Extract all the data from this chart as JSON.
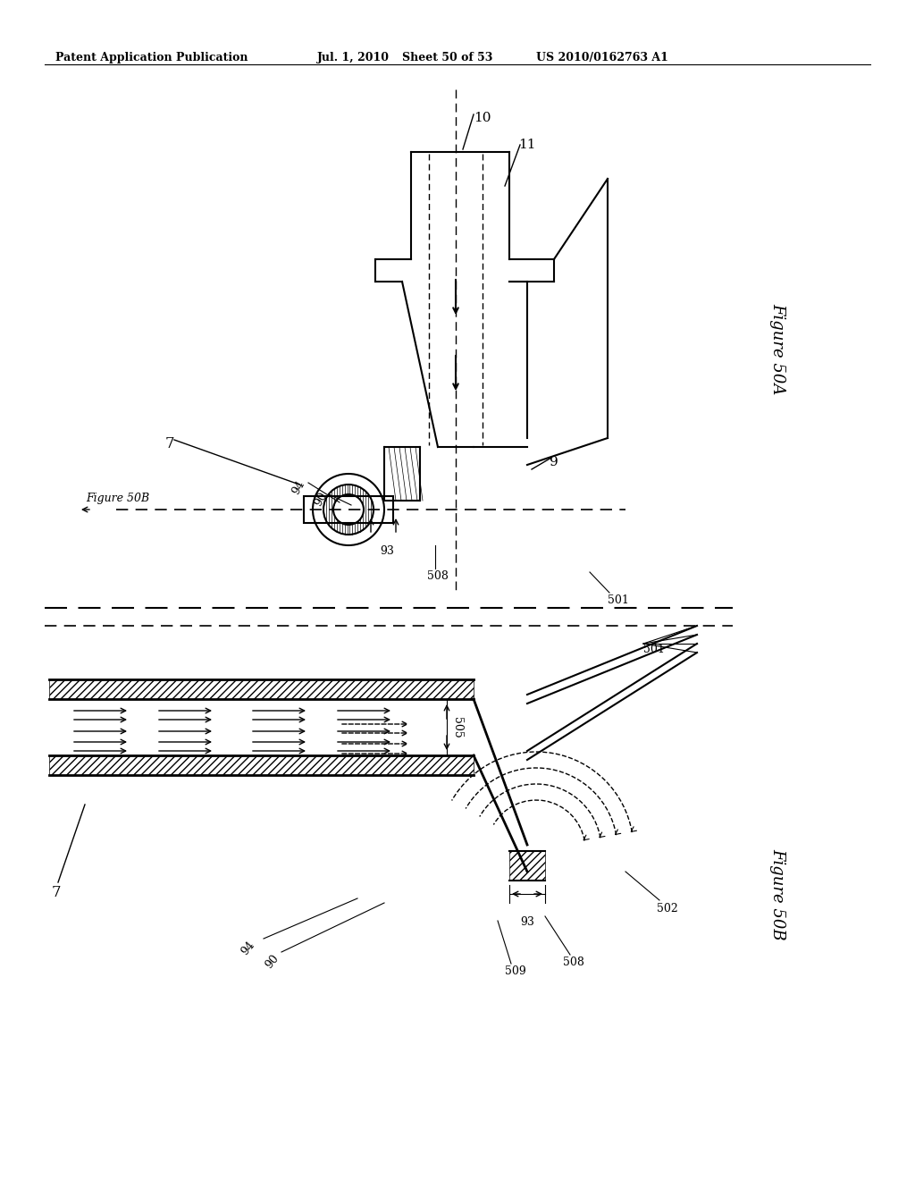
{
  "bg_color": "#ffffff",
  "header_text": "Patent Application Publication",
  "header_date": "Jul. 1, 2010",
  "header_sheet": "Sheet 50 of 53",
  "header_patent": "US 2010/0162763 A1",
  "fig50a_label": "Figure 50A",
  "fig50b_label": "Figure 50B",
  "fig50b_cutline": "Figure 50B"
}
